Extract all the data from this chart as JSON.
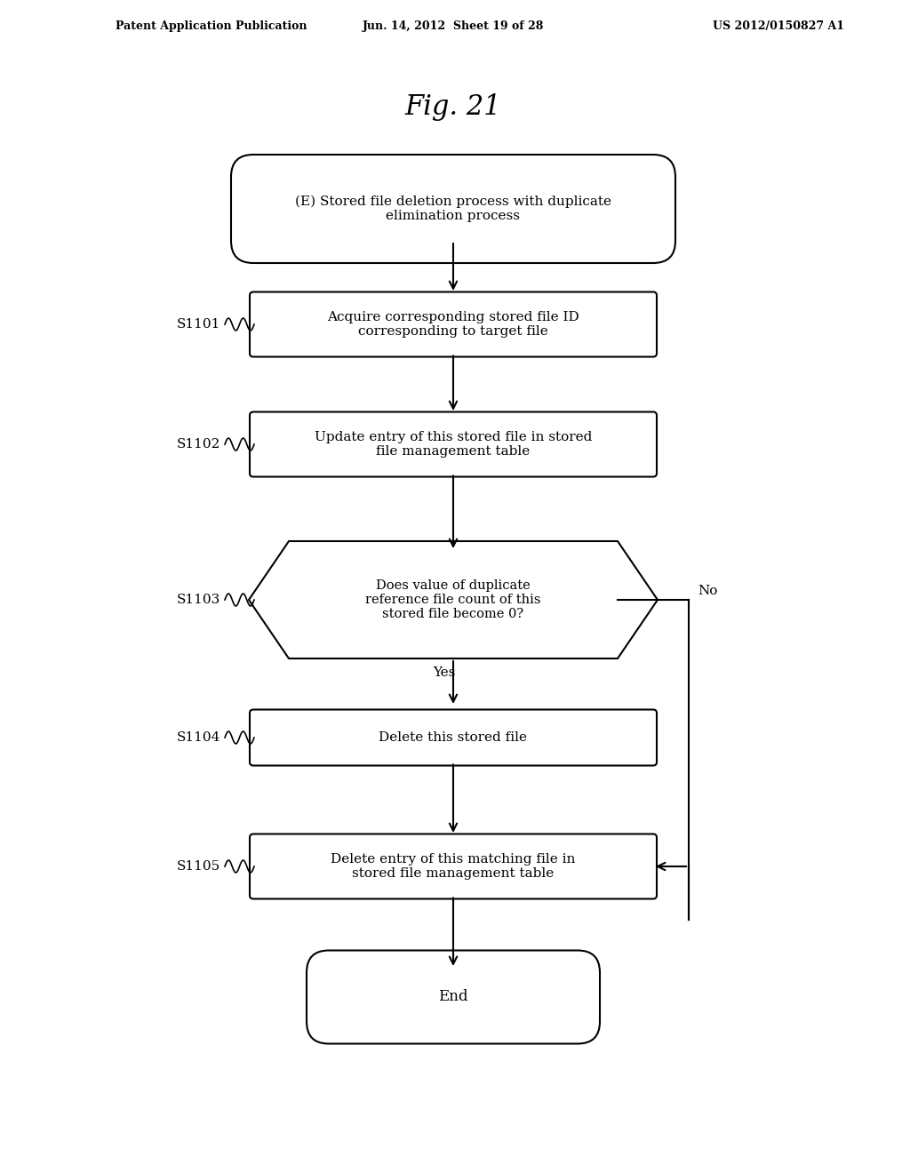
{
  "title": "Fig. 21",
  "header_left": "Patent Application Publication",
  "header_mid": "Jun. 14, 2012  Sheet 19 of 28",
  "header_right": "US 2012/0150827 A1",
  "start_label": "(E) Stored file deletion process with duplicate\nelimination process",
  "steps": [
    {
      "id": "S1101",
      "text": "Acquire corresponding stored file ID\ncorresponding to target file",
      "type": "rect"
    },
    {
      "id": "S1102",
      "text": "Update entry of this stored file in stored\nfile management table",
      "type": "rect"
    },
    {
      "id": "S1103",
      "text": "Does value of duplicate\nreference file count of this\nstored file become 0?",
      "type": "diamond"
    },
    {
      "id": "S1104",
      "text": "Delete this stored file",
      "type": "rect"
    },
    {
      "id": "S1105",
      "text": "Delete entry of this matching file in\nstored file management table",
      "type": "rect"
    }
  ],
  "end_label": "End",
  "no_label": "No",
  "yes_label": "Yes",
  "bg_color": "#ffffff",
  "box_color": "#000000",
  "text_color": "#000000",
  "arrow_color": "#000000"
}
